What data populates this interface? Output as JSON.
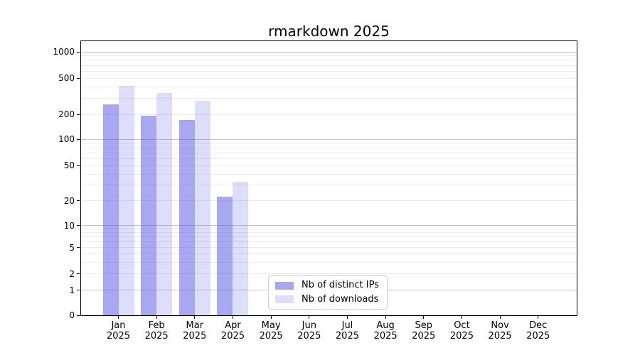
{
  "title": "rmarkdown 2025",
  "colors": {
    "bar_base": "88,88,230",
    "ips_alpha": 0.52,
    "downloads_alpha": 0.2,
    "ips_fill": "rgba(88,88,230,0.52)",
    "downloads_fill": "rgba(88,88,230,0.20)",
    "grid_major": "#c3c3c3",
    "grid_minor": "#ebebeb",
    "axis": "#000000",
    "legend_border": "#cccccc"
  },
  "legend": {
    "items": [
      {
        "label": "Nb of distinct IPs",
        "series_key": "ips"
      },
      {
        "label": "Nb of downloads",
        "series_key": "downloads"
      }
    ]
  },
  "y_axis": {
    "tick_labels": [
      "0",
      "1",
      "2",
      "5",
      "10",
      "20",
      "50",
      "100",
      "200",
      "500",
      "1000"
    ],
    "anchors": {
      "1": 0.0909,
      "2": 0.1506,
      "5": 0.2468,
      "10": 0.3273,
      "20": 0.4182,
      "50": 0.5455,
      "100": 0.6416,
      "200": 0.7325,
      "500": 0.865,
      "1000": 0.961
    }
  },
  "x_axis": {
    "months": [
      "Jan",
      "Feb",
      "Mar",
      "Apr",
      "May",
      "Jun",
      "Jul",
      "Aug",
      "Sep",
      "Oct",
      "Nov",
      "Dec"
    ],
    "year": "2025"
  },
  "chart_data": {
    "type": "bar",
    "title": "rmarkdown 2025",
    "categories": [
      "Jan 2025",
      "Feb 2025",
      "Mar 2025",
      "Apr 2025",
      "May 2025",
      "Jun 2025",
      "Jul 2025",
      "Aug 2025",
      "Sep 2025",
      "Oct 2025",
      "Nov 2025",
      "Dec 2025"
    ],
    "series": [
      {
        "name": "Nb of distinct IPs",
        "key": "ips",
        "values": [
          260,
          193,
          170,
          22,
          0,
          0,
          0,
          0,
          0,
          0,
          0,
          0
        ]
      },
      {
        "name": "Nb of downloads",
        "key": "downloads",
        "values": [
          410,
          345,
          285,
          33,
          0,
          0,
          0,
          0,
          0,
          0,
          0,
          0
        ]
      }
    ],
    "xlabel": "",
    "ylabel": "",
    "yscale": "symlog",
    "ylim": [
      0,
      1400
    ],
    "yticks": [
      0,
      1,
      2,
      5,
      10,
      20,
      50,
      100,
      200,
      500,
      1000
    ],
    "grid": "horizontal, minor log gridlines",
    "legend_position": "inside lower-center"
  }
}
